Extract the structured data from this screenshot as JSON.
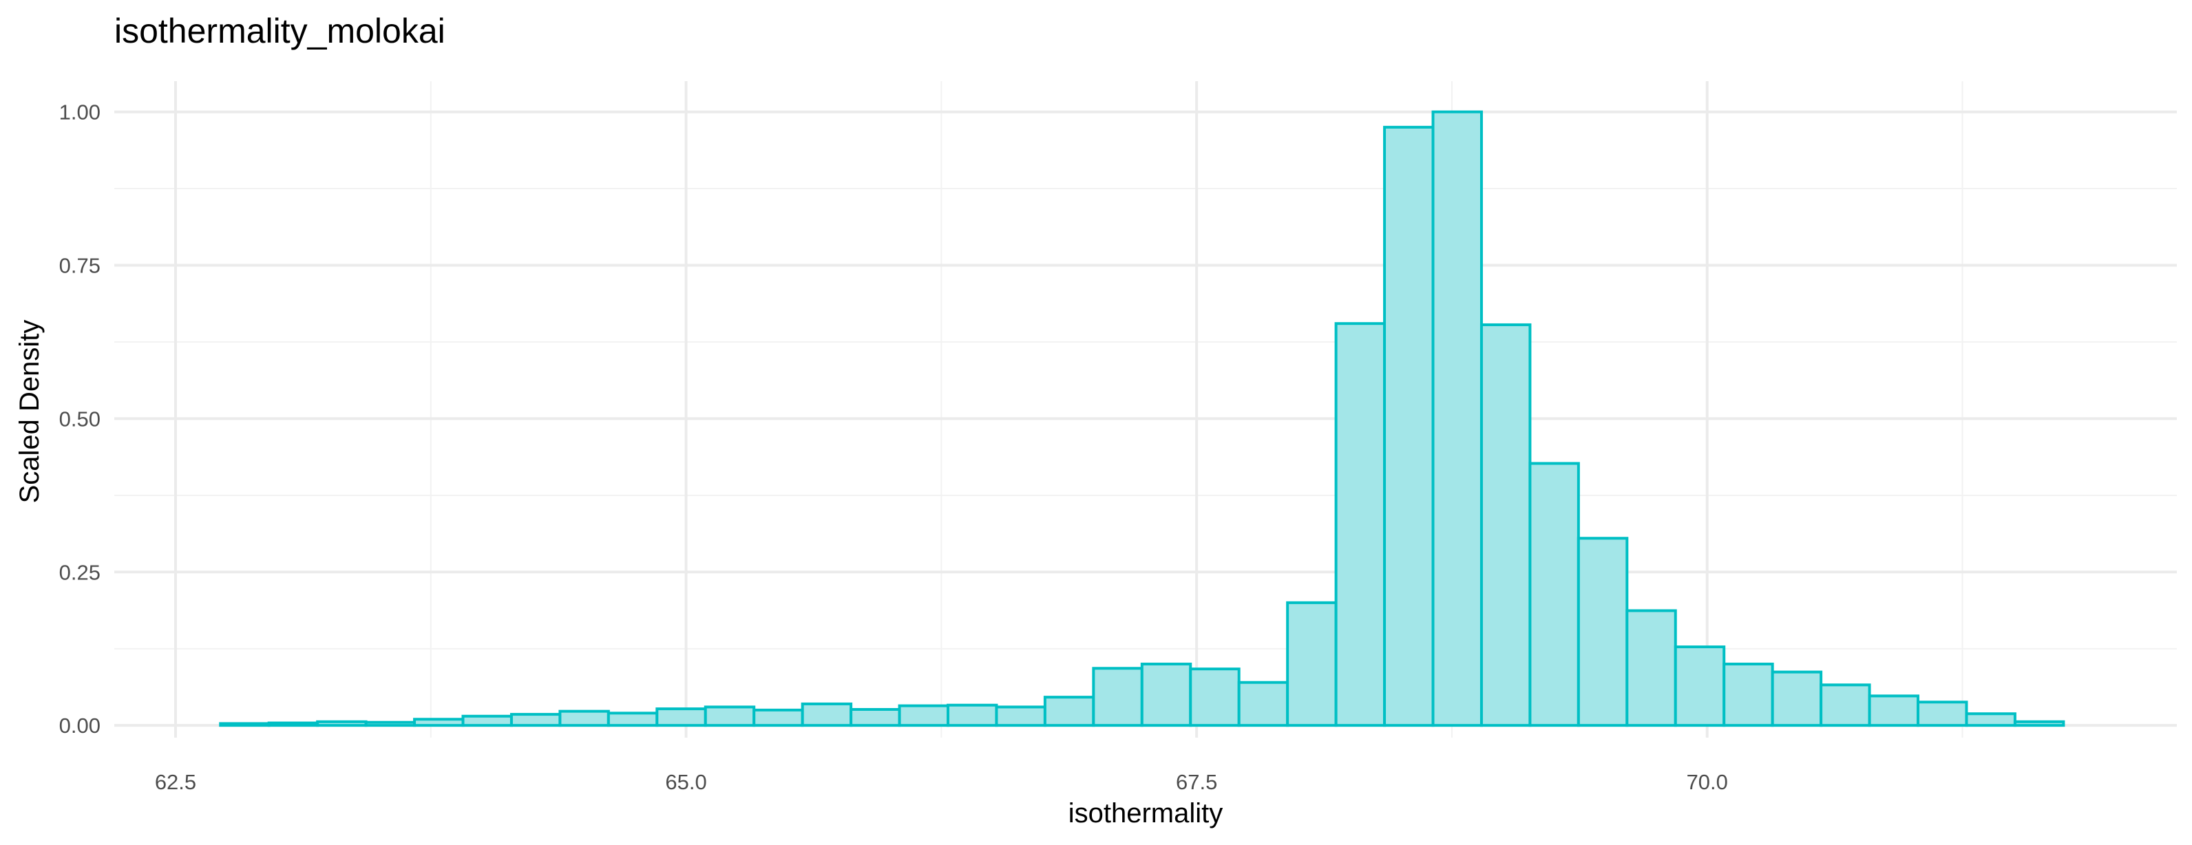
{
  "chart_data": {
    "type": "bar",
    "title": "isothermality_molokai",
    "xlabel": "isothermality",
    "ylabel": "Scaled Density",
    "xlim": [
      62.2,
      72.3
    ],
    "ylim": [
      -0.02,
      1.05
    ],
    "x_ticks": [
      62.5,
      65.0,
      67.5,
      70.0
    ],
    "x_tick_labels": [
      "62.5",
      "65.0",
      "67.5",
      "70.0"
    ],
    "x_minor_ticks": [
      63.75,
      66.25,
      68.75,
      71.25
    ],
    "y_ticks": [
      0,
      0.25,
      0.5,
      0.75,
      1.0
    ],
    "y_tick_labels": [
      "0.00",
      "0.25",
      "0.50",
      "0.75",
      "1.00"
    ],
    "y_minor_ticks": [
      0.125,
      0.375,
      0.625,
      0.875
    ],
    "grid": true,
    "bin_width": 0.2375,
    "bin_start": 62.72,
    "values": [
      0.003,
      0.004,
      0.006,
      0.005,
      0.01,
      0.015,
      0.018,
      0.023,
      0.02,
      0.027,
      0.03,
      0.025,
      0.035,
      0.026,
      0.032,
      0.033,
      0.03,
      0.046,
      0.093,
      0.1,
      0.092,
      0.07,
      0.2,
      0.655,
      0.975,
      1.0,
      0.653,
      0.427,
      0.305,
      0.187,
      0.128,
      0.1,
      0.087,
      0.066,
      0.048,
      0.038,
      0.019,
      0.006
    ],
    "colors": {
      "fill": "#a3e6e8",
      "stroke": "#00bfc4",
      "grid_major": "#ebebeb",
      "grid_minor": "#f2f2f2",
      "tick_text": "#4d4d4d"
    }
  }
}
